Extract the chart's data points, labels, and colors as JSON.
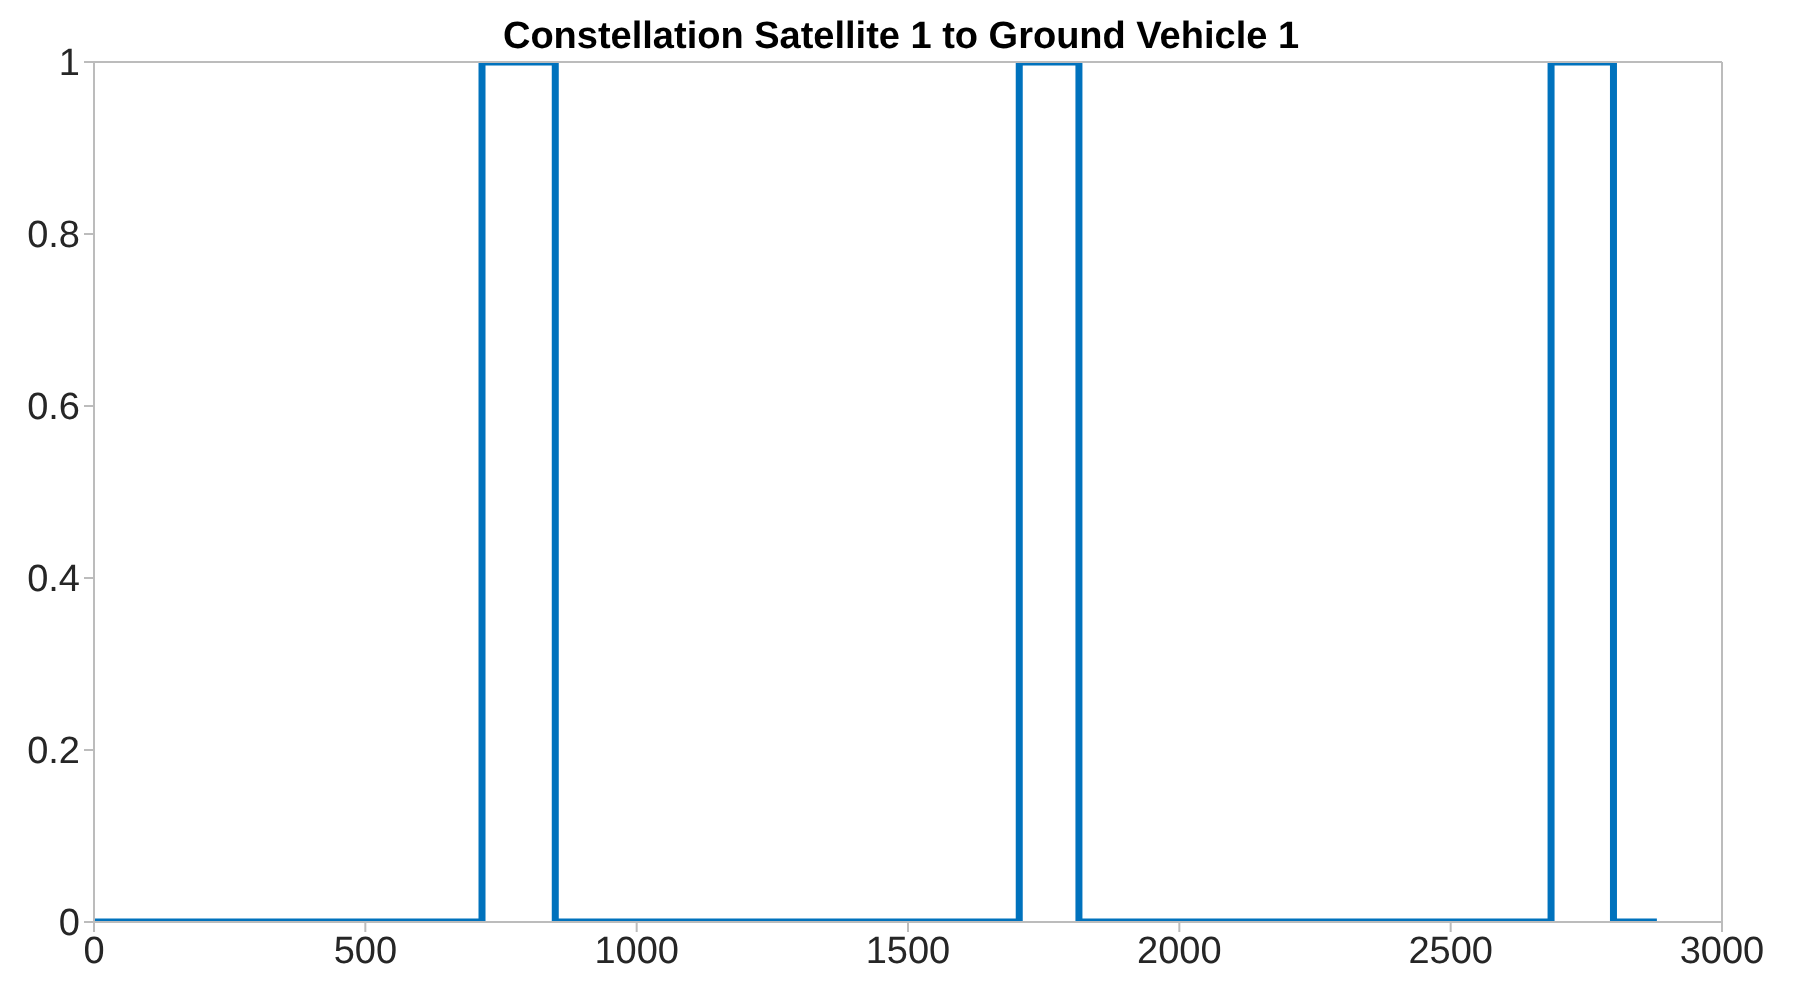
{
  "chart_data": {
    "type": "line",
    "title": "Constellation Satellite 1 to Ground Vehicle 1",
    "x": [
      0,
      715,
      715,
      850,
      850,
      1705,
      1705,
      1815,
      1815,
      2685,
      2685,
      2800,
      2800,
      2880
    ],
    "series": [
      {
        "color": "#0072bd",
        "values": [
          0,
          0,
          1,
          1,
          0,
          0,
          1,
          1,
          0,
          0,
          1,
          1,
          0,
          0
        ]
      }
    ],
    "xlim": [
      0,
      3000
    ],
    "xticks": [
      0,
      500,
      1000,
      1500,
      2000,
      2500,
      3000
    ],
    "ylim": [
      0,
      1
    ],
    "yticks": [
      0,
      0.2,
      0.4,
      0.6,
      0.8,
      1
    ],
    "grid": false,
    "legend": false,
    "marker": "none",
    "line_style": "solid"
  }
}
